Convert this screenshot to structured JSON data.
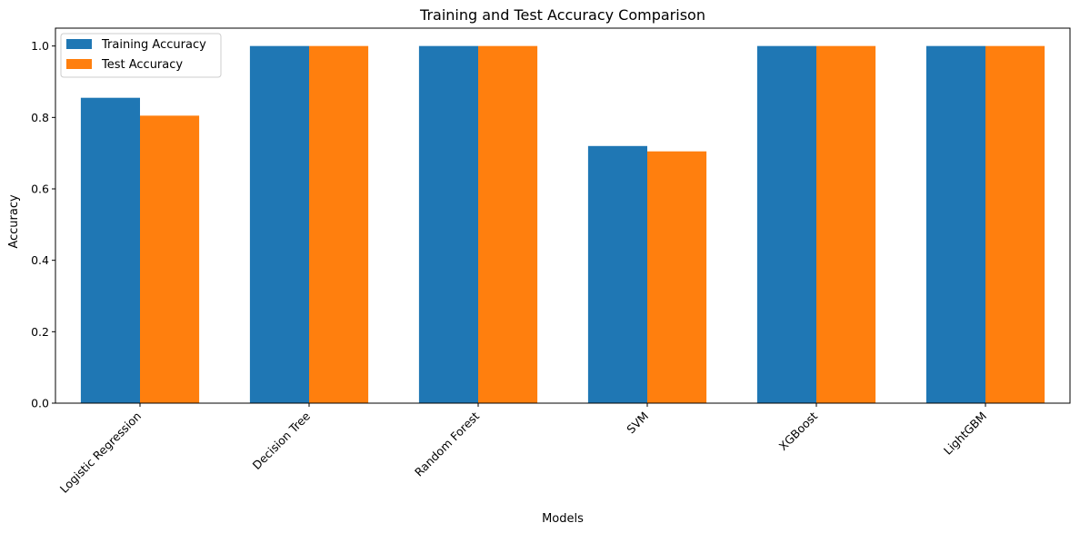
{
  "chart_data": {
    "type": "bar",
    "title": "Training and Test Accuracy Comparison",
    "xlabel": "Models",
    "ylabel": "Accuracy",
    "ylim": [
      0,
      1.05
    ],
    "yticks": [
      0.0,
      0.2,
      0.4,
      0.6,
      0.8,
      1.0
    ],
    "ytick_labels": [
      "0.0",
      "0.2",
      "0.4",
      "0.6",
      "0.8",
      "1.0"
    ],
    "categories": [
      "Logistic Regression",
      "Decision Tree",
      "Random Forest",
      "SVM",
      "XGBoost",
      "LightGBM"
    ],
    "series": [
      {
        "name": "Training Accuracy",
        "color": "#1f77b4",
        "values": [
          0.855,
          1.0,
          1.0,
          0.72,
          1.0,
          1.0
        ]
      },
      {
        "name": "Test Accuracy",
        "color": "#ff7f0e",
        "values": [
          0.805,
          1.0,
          1.0,
          0.705,
          1.0,
          1.0
        ]
      }
    ],
    "legend_position": "top-left",
    "grid": false
  }
}
